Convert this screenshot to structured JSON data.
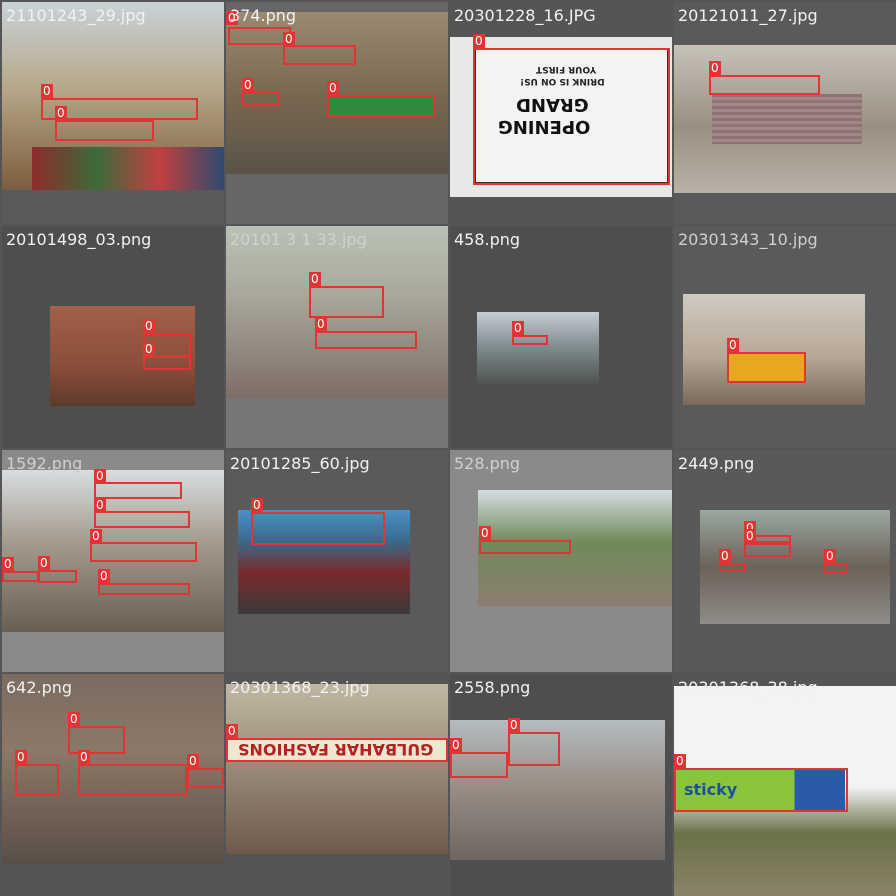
{
  "theme": {
    "page_bg": "#555555",
    "box_color": "#e13535",
    "label_color_light": "#f2f2f2",
    "label_color_dark": "#d0d0d0"
  },
  "detection_label": "0",
  "tiles": [
    {
      "filename": "21101243_29.jpg",
      "bg": "#5a5a5a",
      "box_count": 3
    },
    {
      "filename": "374.png",
      "bg": "#666666",
      "box_count": 5
    },
    {
      "filename": "20301228_16.JPG",
      "bg": "#555555",
      "box_count": 1,
      "sign_lines": [
        "YOUR FIRST",
        "DRINK IS ON US!",
        "GRAND",
        "OPENING"
      ]
    },
    {
      "filename": "20121011_27.jpg",
      "bg": "#5a5a5a",
      "box_count": 1
    },
    {
      "filename": "20101498_03.png",
      "bg": "#4e4e4e",
      "box_count": 3
    },
    {
      "filename": "20101 3 1 33.jpg",
      "bg": "#777777",
      "box_count": 2
    },
    {
      "filename": "458.png",
      "bg": "#4e4e4e",
      "box_count": 1
    },
    {
      "filename": "20301343_10.jpg",
      "bg": "#5a5a5a",
      "box_count": 1
    },
    {
      "filename": "1592.png",
      "bg": "#8a8a8a",
      "box_count": 7
    },
    {
      "filename": "20101285_60.jpg",
      "bg": "#5a5a5a",
      "box_count": 1
    },
    {
      "filename": "528.png",
      "bg": "#8a8a8a",
      "box_count": 1
    },
    {
      "filename": "2449.png",
      "bg": "#595959",
      "box_count": 4
    },
    {
      "filename": "642.png",
      "bg": "#555555",
      "box_count": 4
    },
    {
      "filename": "20301368_23.jpg",
      "bg": "#555555",
      "box_count": 1,
      "sign_lines": [
        "GULBAHAR FASHIONS"
      ]
    },
    {
      "filename": "2558.png",
      "bg": "#4e4e4e",
      "box_count": 2
    },
    {
      "filename": "20301368_38.jpg",
      "bg": "#555555",
      "box_count": 1,
      "sign_lines": [
        "sticky"
      ]
    }
  ]
}
